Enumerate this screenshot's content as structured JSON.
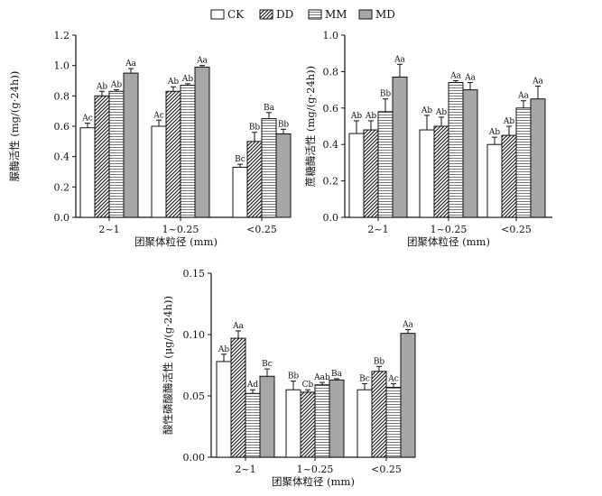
{
  "legend": [
    {
      "name": "CK",
      "pattern": "white"
    },
    {
      "name": "DD",
      "pattern": "diag"
    },
    {
      "name": "MM",
      "pattern": "hstripe"
    },
    {
      "name": "MD",
      "pattern": "gray"
    }
  ],
  "chart_data": [
    {
      "type": "bar",
      "categories": [
        "2~1",
        "1~0.25",
        "<0.25"
      ],
      "xlabel": "团聚体粒径 (mm)",
      "ylabel": "脲酶活性 (mg/(g·24h))",
      "ylim": [
        0,
        1.2
      ],
      "yticks": [
        "0.0",
        "0.2",
        "0.4",
        "0.6",
        "0.8",
        "1.0",
        "1.2"
      ],
      "series": [
        {
          "name": "CK",
          "values": [
            0.59,
            0.6,
            0.33
          ],
          "errors": [
            0.03,
            0.04,
            0.02
          ],
          "labels": [
            "Ac",
            "Ac",
            "Bc"
          ]
        },
        {
          "name": "DD",
          "values": [
            0.8,
            0.83,
            0.5
          ],
          "errors": [
            0.03,
            0.03,
            0.06
          ],
          "labels": [
            "Ab",
            "Ab",
            "Bb"
          ]
        },
        {
          "name": "MM",
          "values": [
            0.83,
            0.87,
            0.65
          ],
          "errors": [
            0.01,
            0.01,
            0.04
          ],
          "labels": [
            "Ab",
            "Ab",
            "Ba"
          ]
        },
        {
          "name": "MD",
          "values": [
            0.95,
            0.99,
            0.55
          ],
          "errors": [
            0.03,
            0.01,
            0.03
          ],
          "labels": [
            "Aa",
            "Aa",
            "Bb"
          ]
        }
      ]
    },
    {
      "type": "bar",
      "categories": [
        "2~1",
        "1~0.25",
        "<0.25"
      ],
      "xlabel": "团聚体粒径 (mm)",
      "ylabel": "蔗糖酶活性 (mg/(g·24h))",
      "ylim": [
        0,
        1.0
      ],
      "yticks": [
        "0.0",
        "0.2",
        "0.4",
        "0.6",
        "0.8",
        "1.0"
      ],
      "series": [
        {
          "name": "CK",
          "values": [
            0.46,
            0.48,
            0.4
          ],
          "errors": [
            0.07,
            0.08,
            0.04
          ],
          "labels": [
            "Ab",
            "Ab",
            "Ab"
          ]
        },
        {
          "name": "DD",
          "values": [
            0.48,
            0.5,
            0.45
          ],
          "errors": [
            0.05,
            0.05,
            0.05
          ],
          "labels": [
            "Ab",
            "Ab",
            "Ab"
          ]
        },
        {
          "name": "MM",
          "values": [
            0.58,
            0.74,
            0.6
          ],
          "errors": [
            0.07,
            0.01,
            0.04
          ],
          "labels": [
            "Bb",
            "Aa",
            "Aa"
          ]
        },
        {
          "name": "MD",
          "values": [
            0.77,
            0.7,
            0.65
          ],
          "errors": [
            0.07,
            0.04,
            0.07
          ],
          "labels": [
            "Aa",
            "Aa",
            "Aa"
          ]
        }
      ]
    },
    {
      "type": "bar",
      "categories": [
        "2~1",
        "1~0.25",
        "<0.25"
      ],
      "xlabel": "团聚体粒径 (mm)",
      "ylabel": "酸性磷酸酶活性 (μg/(g·24h))",
      "ylim": [
        0,
        0.15
      ],
      "yticks": [
        "0.00",
        "0.05",
        "0.10",
        "0.15"
      ],
      "series": [
        {
          "name": "CK",
          "values": [
            0.078,
            0.055,
            0.055
          ],
          "errors": [
            0.006,
            0.007,
            0.005
          ],
          "labels": [
            "Ab",
            "Bb",
            "Bc"
          ]
        },
        {
          "name": "DD",
          "values": [
            0.097,
            0.053,
            0.07
          ],
          "errors": [
            0.006,
            0.002,
            0.004
          ],
          "labels": [
            "Aa",
            "Cb",
            "Bb"
          ]
        },
        {
          "name": "MM",
          "values": [
            0.052,
            0.059,
            0.057
          ],
          "errors": [
            0.003,
            0.002,
            0.003
          ],
          "labels": [
            "Ad",
            "Aab",
            "Ac"
          ]
        },
        {
          "name": "MD",
          "values": [
            0.066,
            0.063,
            0.101
          ],
          "errors": [
            0.006,
            0.001,
            0.003
          ],
          "labels": [
            "Bc",
            "Ba",
            "Aa"
          ]
        }
      ]
    }
  ]
}
